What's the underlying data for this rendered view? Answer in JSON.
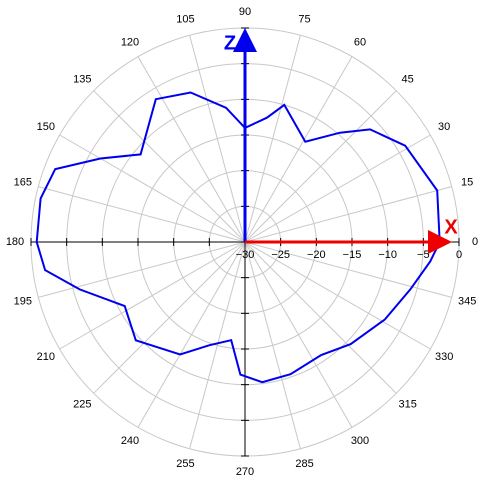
{
  "chart_data": {
    "type": "polar",
    "x_axis_label": "X",
    "z_axis_label": "Z",
    "xlim": [
      0,
      360
    ],
    "xticks": [
      0,
      15,
      30,
      45,
      60,
      75,
      90,
      105,
      120,
      135,
      150,
      165,
      180,
      195,
      210,
      225,
      240,
      255,
      270,
      285,
      300,
      315,
      330,
      345
    ],
    "ylim": [
      -30,
      0
    ],
    "yticks": [
      {
        "value": -30,
        "label": "−30"
      },
      {
        "value": -25,
        "label": "−25"
      },
      {
        "value": -20,
        "label": "−20"
      },
      {
        "value": -15,
        "label": "−15"
      },
      {
        "value": -10,
        "label": "−10"
      },
      {
        "value": -5,
        "label": "−5"
      },
      0
    ],
    "grid": true,
    "series": [
      {
        "color": "#0000ee",
        "x": [
          0,
          15,
          31,
          42,
          49,
          59,
          74,
          80,
          90,
          98,
          110,
          122,
          140,
          150,
          159,
          168,
          180,
          188,
          196,
          208,
          222,
          240,
          251,
          262,
          268,
          277,
          289,
          304,
          316,
          331,
          344,
          354,
          360
        ],
        "values": [
          -2.7,
          -2.1,
          -3.8,
          -6.4,
          -9.7,
          -13.6,
          -10,
          -12.3,
          -14,
          -11,
          -7.7,
          -6.4,
          -10.9,
          -6.6,
          -1.5,
          -0.7,
          -0.8,
          -1.7,
          -5.9,
          -10.9,
          -9.4,
          -11.8,
          -14.7,
          -16.1,
          -11.4,
          -10.2,
          -10.4,
          -10.9,
          -9.4,
          -7.6,
          -5.9,
          -3.9,
          -2.7
        ]
      }
    ]
  }
}
